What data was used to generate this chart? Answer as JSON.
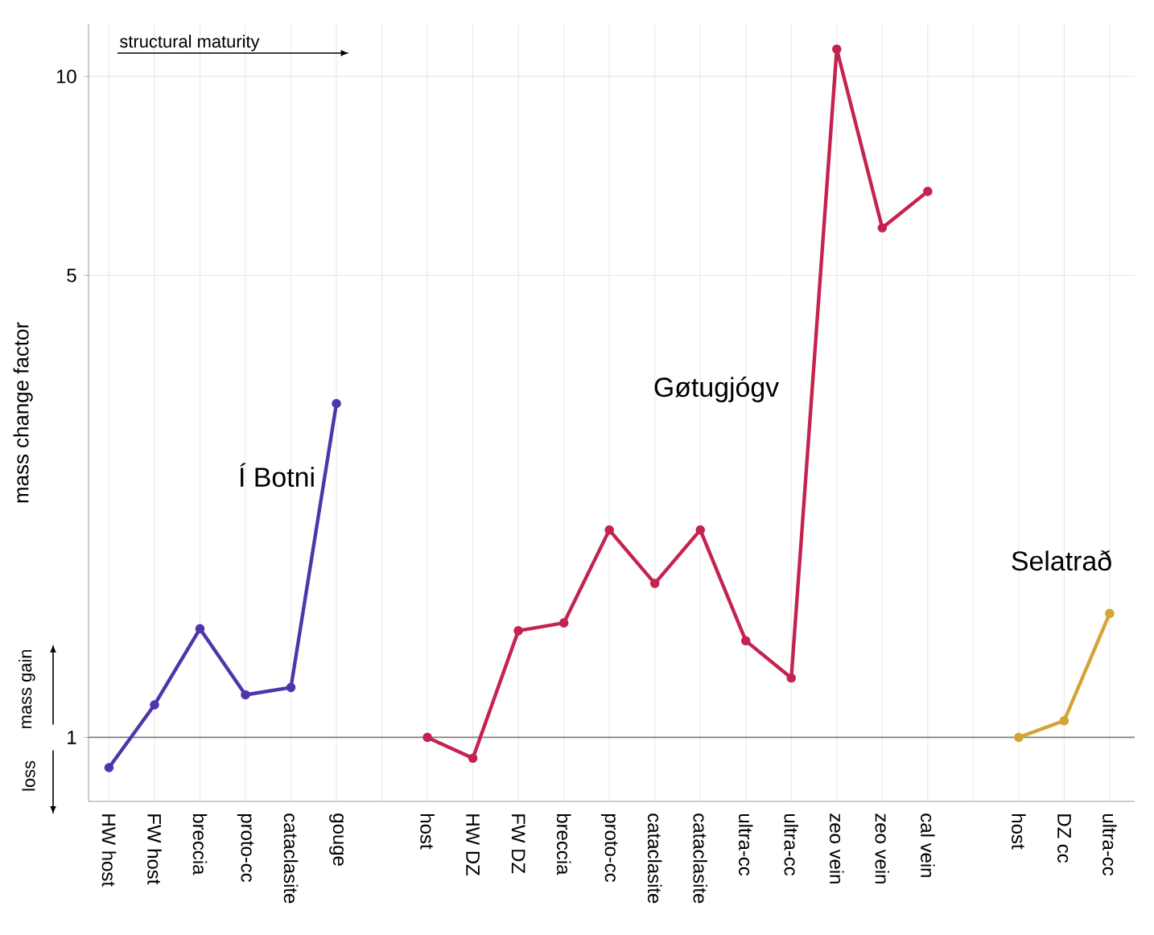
{
  "chart_data": {
    "type": "line",
    "ylabel": "mass change factor",
    "categories": [
      "HW host",
      "FW host",
      "breccia",
      "proto-cc",
      "cataclasite",
      "gouge",
      null,
      "host",
      "HW DZ",
      "FW DZ",
      "breccia",
      "proto-cc",
      "cataclasite",
      "cataclasite",
      "ultra-cc",
      "ultra-cc",
      "zeo vein",
      "zeo vein",
      "cal vein",
      null,
      "host",
      "DZ cc",
      "ultra-cc"
    ],
    "series": [
      {
        "name": "Í Botni",
        "color": "#5034aa",
        "values": [
          0.9,
          1.12,
          1.46,
          1.16,
          1.19,
          3.2,
          null,
          null,
          null,
          null,
          null,
          null,
          null,
          null,
          null,
          null,
          null,
          null,
          null,
          null,
          null,
          null,
          null
        ]
      },
      {
        "name": "Gøtugjógv",
        "color": "#c4234f",
        "values": [
          null,
          null,
          null,
          null,
          null,
          null,
          null,
          1.0,
          0.93,
          1.45,
          1.49,
          2.06,
          1.71,
          2.06,
          1.4,
          1.23,
          11,
          5.9,
          6.7,
          null,
          null,
          null,
          null
        ]
      },
      {
        "name": "Selatrað",
        "color": "#d4a437",
        "values": [
          null,
          null,
          null,
          null,
          null,
          null,
          null,
          null,
          null,
          null,
          null,
          null,
          null,
          null,
          null,
          null,
          null,
          null,
          null,
          null,
          1.0,
          1.06,
          1.54
        ]
      }
    ],
    "ylim": [
      0.8,
      12
    ],
    "yticks": [
      1,
      5,
      10
    ],
    "log": true,
    "grid": true,
    "marker": "circle",
    "line_style": "solid",
    "ref_lines": [
      {
        "axis": "y",
        "value": 1,
        "color": "#7f7f7f"
      }
    ],
    "annotations": [
      "structural maturity",
      "mass gain",
      "loss"
    ]
  }
}
